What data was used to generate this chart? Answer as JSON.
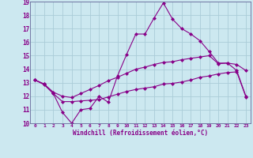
{
  "title": "",
  "xlabel": "Windchill (Refroidissement éolien,°C)",
  "ylabel": "",
  "bg_color": "#cce8f0",
  "grid_color": "#aaccd8",
  "line_color": "#880088",
  "xlim": [
    -0.5,
    23.5
  ],
  "ylim": [
    10,
    19
  ],
  "xticks": [
    0,
    1,
    2,
    3,
    4,
    5,
    6,
    7,
    8,
    9,
    10,
    11,
    12,
    13,
    14,
    15,
    16,
    17,
    18,
    19,
    20,
    21,
    22,
    23
  ],
  "yticks": [
    10,
    11,
    12,
    13,
    14,
    15,
    16,
    17,
    18,
    19
  ],
  "line1_x": [
    0,
    1,
    2,
    3,
    4,
    5,
    6,
    7,
    8,
    9,
    10,
    11,
    12,
    13,
    14,
    15,
    16,
    17,
    18,
    19,
    20,
    21,
    22,
    23
  ],
  "line1_y": [
    13.2,
    12.9,
    12.2,
    10.8,
    10.0,
    11.0,
    11.1,
    12.0,
    11.55,
    13.5,
    15.1,
    16.6,
    16.6,
    17.8,
    18.9,
    17.7,
    17.0,
    16.6,
    16.1,
    15.3,
    14.45,
    14.45,
    13.9,
    12.0
  ],
  "line2_x": [
    0,
    1,
    2,
    3,
    4,
    5,
    6,
    7,
    8,
    9,
    10,
    11,
    12,
    13,
    14,
    15,
    16,
    17,
    18,
    19,
    20,
    21,
    22,
    23
  ],
  "line2_y": [
    13.2,
    12.9,
    12.3,
    12.0,
    11.9,
    12.2,
    12.5,
    12.8,
    13.15,
    13.4,
    13.7,
    14.0,
    14.15,
    14.35,
    14.5,
    14.55,
    14.7,
    14.8,
    14.9,
    15.0,
    14.4,
    14.45,
    14.35,
    13.9
  ],
  "line3_x": [
    0,
    1,
    2,
    3,
    4,
    5,
    6,
    7,
    8,
    9,
    10,
    11,
    12,
    13,
    14,
    15,
    16,
    17,
    18,
    19,
    20,
    21,
    22,
    23
  ],
  "line3_y": [
    13.2,
    12.85,
    12.2,
    11.6,
    11.6,
    11.65,
    11.7,
    11.75,
    11.95,
    12.15,
    12.35,
    12.5,
    12.6,
    12.7,
    12.9,
    12.95,
    13.05,
    13.2,
    13.4,
    13.5,
    13.65,
    13.75,
    13.8,
    11.95
  ]
}
